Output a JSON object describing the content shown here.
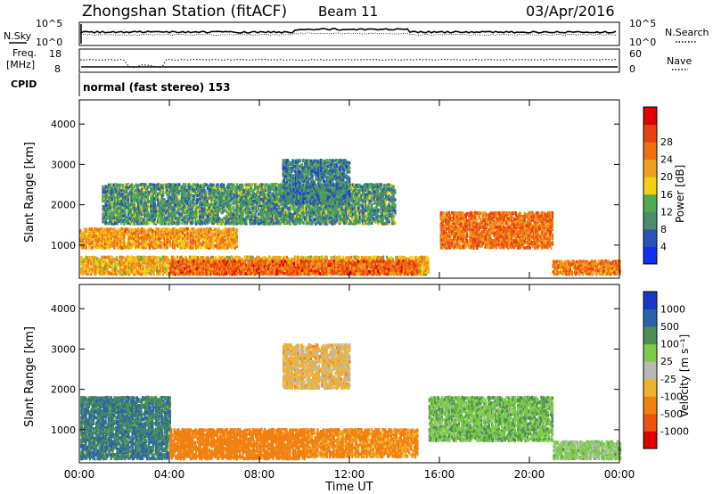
{
  "header": {
    "title": "Zhongshan Station (fitACF)",
    "beam": "Beam 11",
    "date": "03/Apr/2016"
  },
  "scan_panel": {
    "nsky_label": "N.Sky",
    "nsearch_label": "N.Search",
    "freq_label": "Freq.",
    "freq_unit": "[MHz]",
    "nave_label": "Nave",
    "cpid_label": "CPID",
    "cpid_text": "normal (fast stereo) 153",
    "nsky_ticks": [
      "10^5",
      "10^0"
    ],
    "nsearch_ticks": [
      "10^5",
      "10^0"
    ],
    "freq_ticks": [
      "18",
      "8"
    ],
    "nave_ticks": [
      "60",
      "0"
    ]
  },
  "colors": {
    "power": [
      "#1030f0",
      "#2a52b8",
      "#4a8c6c",
      "#50aa50",
      "#f0d010",
      "#f0a020",
      "#f07010",
      "#e84010",
      "#e00000"
    ],
    "velocity": [
      "#e00000",
      "#f05010",
      "#f08010",
      "#f0b030",
      "#b8b8b8",
      "#7ecb4a",
      "#4a9050",
      "#2a64a8",
      "#1838c8"
    ]
  },
  "chart_data": [
    {
      "type": "heatmap",
      "title": "Power",
      "xlabel": "Time UT",
      "ylabel": "Slant Range [km]",
      "xlim": [
        "00:00",
        "24:00"
      ],
      "ylim": [
        180,
        4600
      ],
      "x_ticks": [
        "00:00",
        "04:00",
        "08:00",
        "12:00",
        "16:00",
        "20:00",
        "00:00"
      ],
      "y_ticks": [
        "1000",
        "2000",
        "3000",
        "4000"
      ],
      "colorbar": {
        "label": "Power [dB]",
        "ticks": [
          "4",
          "8",
          "12",
          "16",
          "20",
          "24",
          "28"
        ]
      },
      "echo_regions": [
        {
          "t_start": 0.0,
          "t_end": 15.5,
          "range_km": [
            250,
            700
          ],
          "level_dB": 20
        },
        {
          "t_start": 4.0,
          "t_end": 15.0,
          "range_km": [
            250,
            600
          ],
          "level_dB": 26
        },
        {
          "t_start": 0.0,
          "t_end": 7.0,
          "range_km": [
            900,
            1400
          ],
          "level_dB": 22
        },
        {
          "t_start": 16.0,
          "t_end": 21.0,
          "range_km": [
            900,
            1800
          ],
          "level_dB": 25
        },
        {
          "t_start": 21.0,
          "t_end": 24.0,
          "range_km": [
            250,
            600
          ],
          "level_dB": 24
        },
        {
          "t_start": 1.0,
          "t_end": 14.0,
          "range_km": [
            1500,
            2500
          ],
          "level_dB": 12
        },
        {
          "t_start": 9.0,
          "t_end": 12.0,
          "range_km": [
            2000,
            3100
          ],
          "level_dB": 10
        }
      ]
    },
    {
      "type": "heatmap",
      "title": "Velocity",
      "xlabel": "Time UT",
      "ylabel": "Slant Range [km]",
      "xlim": [
        "00:00",
        "24:00"
      ],
      "ylim": [
        180,
        4600
      ],
      "x_ticks": [
        "00:00",
        "04:00",
        "08:00",
        "12:00",
        "16:00",
        "20:00",
        "00:00"
      ],
      "y_ticks": [
        "1000",
        "2000",
        "3000",
        "4000"
      ],
      "colorbar": {
        "label": "Velocity [m s⁻¹]",
        "ticks": [
          "1000",
          "500",
          "100",
          "25",
          "-25",
          "-100",
          "-500",
          "-1000"
        ]
      },
      "echo_regions": [
        {
          "t_start": 0.0,
          "t_end": 4.0,
          "range_km": [
            250,
            1800
          ],
          "velocity": 500
        },
        {
          "t_start": 4.0,
          "t_end": 10.0,
          "range_km": [
            250,
            1000
          ],
          "velocity": -300
        },
        {
          "t_start": 10.0,
          "t_end": 15.0,
          "range_km": [
            300,
            1000
          ],
          "velocity": -150
        },
        {
          "t_start": 9.0,
          "t_end": 12.0,
          "range_km": [
            2000,
            3100
          ],
          "velocity": -50
        },
        {
          "t_start": 15.5,
          "t_end": 21.0,
          "range_km": [
            700,
            1800
          ],
          "velocity": 80
        },
        {
          "t_start": 21.0,
          "t_end": 24.0,
          "range_km": [
            250,
            700
          ],
          "velocity": 50
        }
      ]
    }
  ]
}
